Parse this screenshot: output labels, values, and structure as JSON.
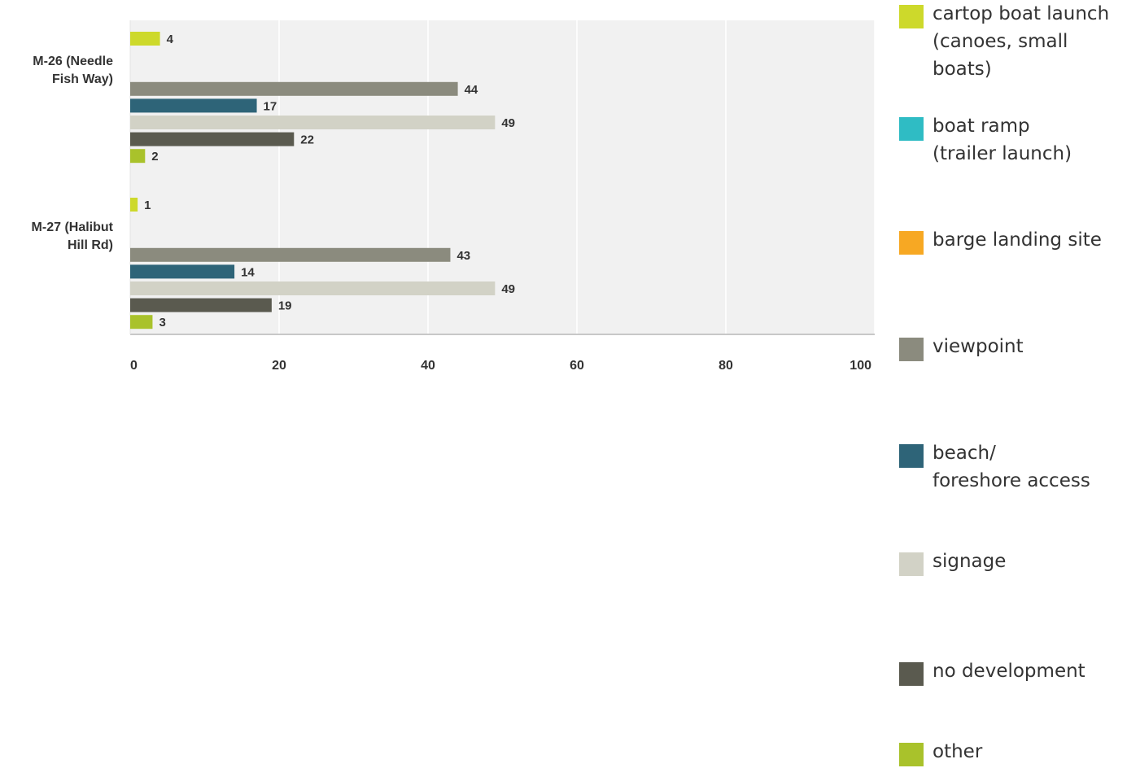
{
  "chart_data": {
    "type": "bar",
    "orientation": "horizontal",
    "categories": [
      "M-26 (Needle\nFish Way)",
      "M-27 (Halibut\nHill Rd)"
    ],
    "series": [
      {
        "name": "cartop boat launch\n(canoes, small\nboats)",
        "color": "#cdd92b",
        "values": [
          4,
          1
        ]
      },
      {
        "name": "boat ramp\n(trailer launch)",
        "color": "#2fbcc4",
        "values": [
          null,
          null
        ]
      },
      {
        "name": "barge landing site",
        "color": "#f7a823",
        "values": [
          null,
          null
        ]
      },
      {
        "name": "viewpoint",
        "color": "#8b8b7e",
        "values": [
          44,
          43
        ]
      },
      {
        "name": "beach/\nforeshore access",
        "color": "#2e6478",
        "values": [
          17,
          14
        ]
      },
      {
        "name": "signage",
        "color": "#d2d2c6",
        "values": [
          49,
          49
        ]
      },
      {
        "name": "no development",
        "color": "#5a5a4f",
        "values": [
          22,
          19
        ]
      },
      {
        "name": "other",
        "color": "#a9c22b",
        "values": [
          2,
          3
        ]
      }
    ],
    "xlim": [
      0,
      100
    ],
    "xticks": [
      0,
      20,
      40,
      60,
      80,
      100
    ],
    "grid": true,
    "legend_position": "right",
    "title": "",
    "xlabel": "",
    "ylabel": ""
  }
}
